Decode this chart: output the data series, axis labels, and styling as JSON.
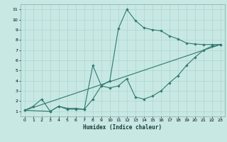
{
  "title": "",
  "xlabel": "Humidex (Indice chaleur)",
  "ylabel": "",
  "bg_color": "#c8e8e4",
  "grid_color": "#aed4d0",
  "line_color": "#2e7a6e",
  "xlim": [
    -0.5,
    23.5
  ],
  "ylim": [
    0.5,
    11.5
  ],
  "xticks": [
    0,
    1,
    2,
    3,
    4,
    5,
    6,
    7,
    8,
    9,
    10,
    11,
    12,
    13,
    14,
    15,
    16,
    17,
    18,
    19,
    20,
    21,
    22,
    23
  ],
  "yticks": [
    1,
    2,
    3,
    4,
    5,
    6,
    7,
    8,
    9,
    10,
    11
  ],
  "lines": [
    {
      "x": [
        0,
        1,
        2,
        3,
        4,
        5,
        6,
        7,
        8,
        9,
        10,
        11,
        12,
        13,
        14,
        15,
        16,
        17,
        18,
        19,
        20,
        21,
        22,
        23
      ],
      "y": [
        1.1,
        1.5,
        2.2,
        1.0,
        1.5,
        1.2,
        1.2,
        1.2,
        2.2,
        3.5,
        4.0,
        9.1,
        11.0,
        9.9,
        9.2,
        9.0,
        8.9,
        8.4,
        8.1,
        7.7,
        7.6,
        7.55,
        7.55,
        7.55
      ],
      "has_markers": true
    },
    {
      "x": [
        0,
        3,
        4,
        5,
        6,
        7,
        8,
        9,
        10,
        11,
        12,
        13,
        14,
        15,
        16,
        17,
        18,
        19,
        20,
        21,
        22,
        23
      ],
      "y": [
        1.1,
        1.0,
        1.5,
        1.3,
        1.3,
        1.2,
        5.5,
        3.5,
        3.3,
        3.5,
        4.2,
        2.4,
        2.2,
        2.5,
        3.0,
        3.8,
        4.5,
        5.5,
        6.3,
        7.0,
        7.4,
        7.55
      ],
      "has_markers": true
    },
    {
      "x": [
        0,
        23
      ],
      "y": [
        1.1,
        7.55
      ],
      "has_markers": false
    }
  ]
}
